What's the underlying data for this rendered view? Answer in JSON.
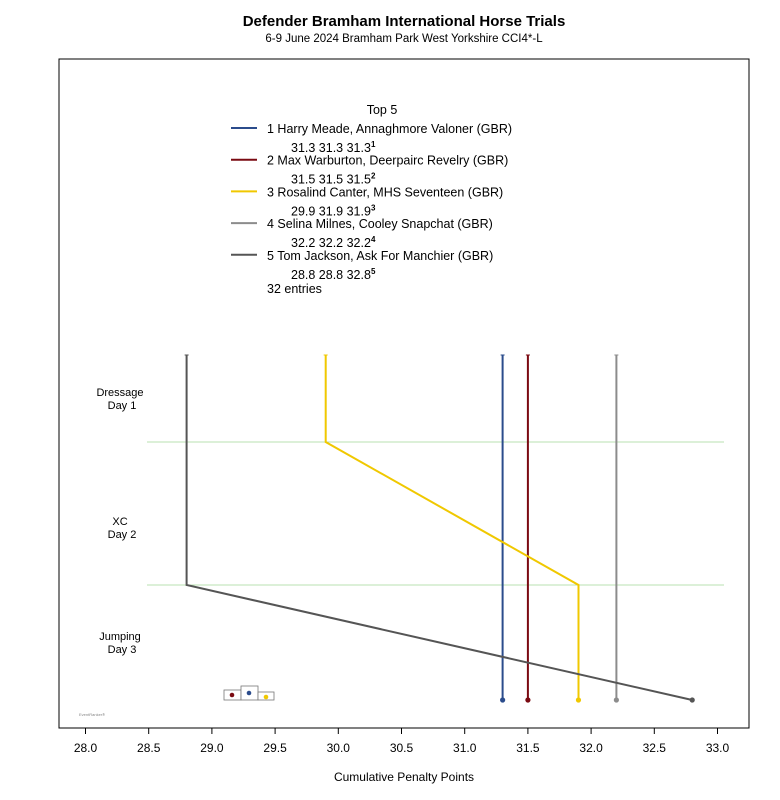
{
  "chart_data": {
    "type": "line",
    "title": "Defender Bramham International Horse Trials",
    "subtitle": "6-9 June 2024  Bramham Park  West Yorkshire  CCI4*-L",
    "xlabel": "Cumulative Penalty Points",
    "xlim": [
      27.85,
      33.25
    ],
    "x_ticks": [
      "28.0",
      "28.5",
      "29.0",
      "29.5",
      "30.0",
      "30.5",
      "31.0",
      "31.5",
      "32.0",
      "32.5",
      "33.0"
    ],
    "stages": [
      {
        "name": "Dressage",
        "day": "Day 1"
      },
      {
        "name": "XC",
        "day": "Day 2"
      },
      {
        "name": "Jumping",
        "day": "Day 3"
      }
    ],
    "legend": {
      "heading": "Top 5",
      "entries_text": "32 entries",
      "placement": "top"
    },
    "grid": "horizontal lines between stages",
    "series": [
      {
        "rank": "1",
        "name": "Harry Meade,  Annaghmore Valoner  (GBR)",
        "color": "#2b4c8c",
        "values": [
          31.3,
          31.3,
          31.3
        ],
        "labels": [
          "31.3",
          "31.3",
          "31.3"
        ],
        "final_rank": "1"
      },
      {
        "rank": "2",
        "name": "Max Warburton,  Deerpairc Revelry  (GBR)",
        "color": "#7a0a12",
        "values": [
          31.5,
          31.5,
          31.5
        ],
        "labels": [
          "31.5",
          "31.5",
          "31.5"
        ],
        "final_rank": "2"
      },
      {
        "rank": "3",
        "name": "Rosalind Canter,  MHS Seventeen  (GBR)",
        "color": "#f0c800",
        "values": [
          29.9,
          31.9,
          31.9
        ],
        "labels": [
          "29.9",
          "31.9",
          "31.9"
        ],
        "final_rank": "3"
      },
      {
        "rank": "4",
        "name": "Selina Milnes,  Cooley Snapchat  (GBR)",
        "color": "#8c8c8c",
        "values": [
          32.2,
          32.2,
          32.2
        ],
        "labels": [
          "32.2",
          "32.2",
          "32.2"
        ],
        "final_rank": "4"
      },
      {
        "rank": "5",
        "name": "Tom Jackson,  Ask For Manchier  (GBR)",
        "color": "#555555",
        "values": [
          28.8,
          28.8,
          32.8
        ],
        "labels": [
          "28.8",
          "28.8",
          "32.8"
        ],
        "final_rank": "5"
      }
    ],
    "watermark": "EventRanker",
    "logo_dot_colors": [
      "#7a0a12",
      "#2b4c8c",
      "#f0c800"
    ]
  }
}
